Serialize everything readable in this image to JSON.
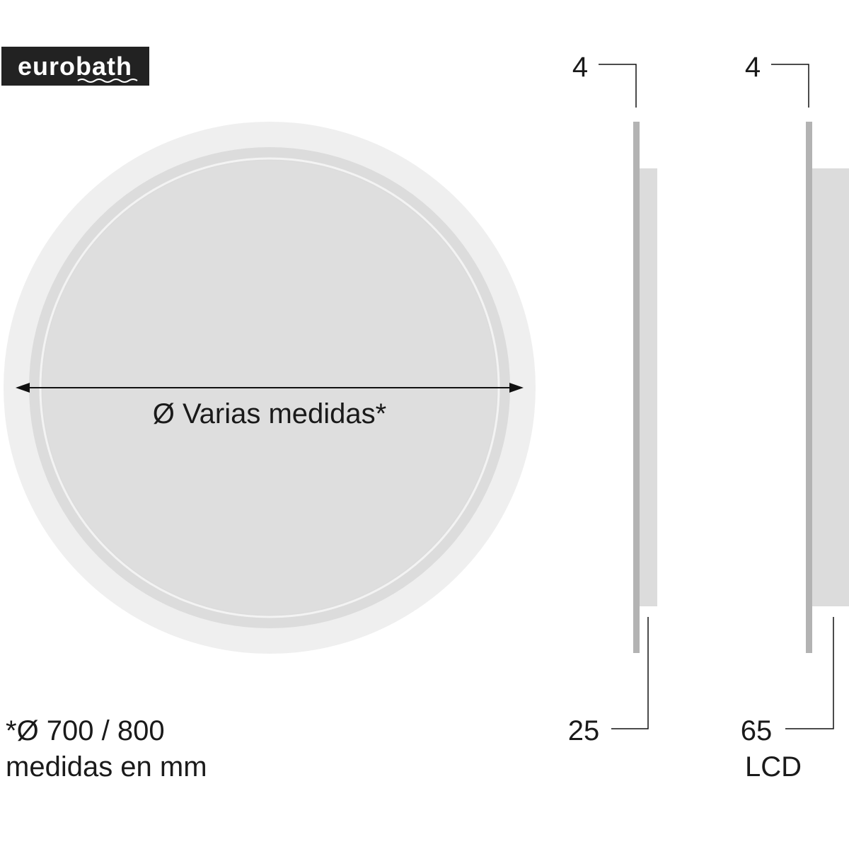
{
  "logo": {
    "text": "eurobath"
  },
  "front_view": {
    "diameter_label": "Ø Varias medidas*"
  },
  "notes": {
    "sizes": "*Ø 700 / 800",
    "units": "medidas en mm"
  },
  "side_view_standard": {
    "glass_thickness": "4",
    "depth": "25"
  },
  "side_view_lcd": {
    "glass_thickness": "4",
    "depth": "65",
    "variant": "LCD"
  },
  "colors": {
    "panel": "#b3b3b3",
    "back": "#dcdcdc",
    "mirror_outer": "#efefef",
    "mirror_inner": "#dedede",
    "logo_bg": "#222222"
  }
}
